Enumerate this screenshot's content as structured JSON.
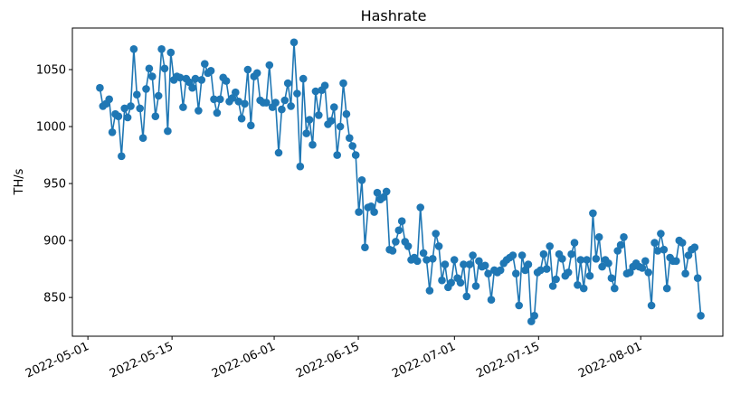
{
  "chart_data": {
    "type": "line",
    "title": "Hashrate",
    "xlabel": "",
    "ylabel": "TH/s",
    "x_start": "2022-05-03",
    "x_end": "2022-08-11",
    "xlim": [
      "2022-04-28T10:00",
      "2022-08-14T16:00"
    ],
    "ylim": [
      816,
      1086.5
    ],
    "yticks": [
      850,
      900,
      950,
      1000,
      1050
    ],
    "ytick_labels": [
      "850",
      "900",
      "950",
      "1000",
      "1050"
    ],
    "xticks": [
      "2022-05-01",
      "2022-05-15",
      "2022-06-01",
      "2022-06-15",
      "2022-07-01",
      "2022-07-15",
      "2022-08-01"
    ],
    "xtick_labels": [
      "2022-05-01",
      "2022-05-15",
      "2022-06-01",
      "2022-06-15",
      "2022-07-01",
      "2022-07-15",
      "2022-08-01"
    ],
    "grid": false,
    "series": [
      {
        "name": "Hashrate",
        "color": "#1f77b4",
        "marker": "circle",
        "values": [
          1034,
          1018,
          1020,
          1024,
          995,
          1011,
          1009,
          974,
          1016,
          1008,
          1018,
          1068,
          1028,
          1016,
          990,
          1033,
          1051,
          1044,
          1009,
          1027,
          1068,
          1051,
          996,
          1065,
          1041,
          1044,
          1043,
          1017,
          1042,
          1039,
          1034,
          1042,
          1014,
          1041,
          1055,
          1047,
          1049,
          1024,
          1012,
          1024,
          1043,
          1040,
          1022,
          1025,
          1030,
          1022,
          1007,
          1020,
          1050,
          1001,
          1044,
          1047,
          1023,
          1021,
          1021,
          1054,
          1017,
          1021,
          977,
          1015,
          1023,
          1038,
          1018,
          1074,
          1029,
          965,
          1042,
          994,
          1006,
          984,
          1031,
          1010,
          1032,
          1036,
          1002,
          1005,
          1017,
          975,
          1000,
          1038,
          1011,
          990,
          983,
          975,
          925,
          953,
          894,
          929,
          930,
          925,
          942,
          936,
          938,
          943,
          892,
          891,
          899,
          909,
          917,
          899,
          895,
          883,
          885,
          882,
          929,
          889,
          883,
          856,
          884,
          906,
          895,
          865,
          879,
          859,
          863,
          883,
          867,
          863,
          879,
          851,
          879,
          887,
          860,
          882,
          877,
          878,
          871,
          848,
          874,
          872,
          874,
          880,
          883,
          885,
          887,
          871,
          843,
          887,
          874,
          879,
          829,
          834,
          872,
          874,
          888,
          875,
          895,
          860,
          866,
          888,
          884,
          869,
          872,
          888,
          898,
          861,
          883,
          858,
          883,
          869,
          924,
          884,
          903,
          877,
          883,
          880,
          867,
          858,
          891,
          896,
          903,
          871,
          872,
          877,
          880,
          877,
          876,
          882,
          872,
          843,
          898,
          891,
          906,
          892,
          858,
          885,
          882,
          882,
          900,
          898,
          871,
          887,
          892,
          894,
          867,
          834
        ]
      }
    ]
  }
}
